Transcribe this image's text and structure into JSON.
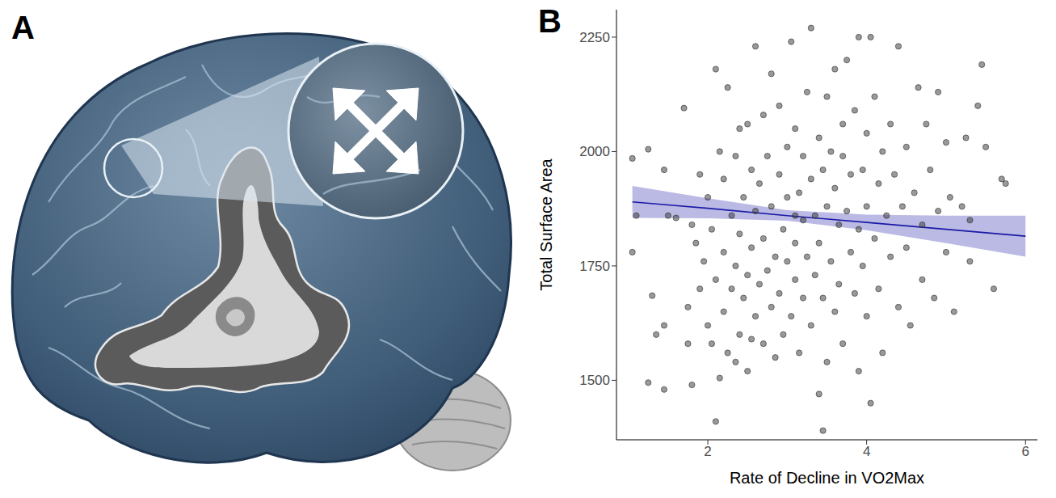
{
  "panel_labels": [
    "A",
    "B"
  ],
  "chart_data": {
    "type": "scatter",
    "x_label": "Rate of Decline in VO2Max",
    "y_label": "Total Surface Area",
    "xlim": [
      0.85,
      6.15
    ],
    "xticks": [
      2,
      4,
      6
    ],
    "ylim": [
      1370,
      2310
    ],
    "yticks": [
      1500,
      1750,
      2000,
      2250
    ],
    "series": [
      {
        "type": "scatter",
        "color": "#333333",
        "marker": "circle",
        "x": [
          1.05,
          1.05,
          1.1,
          1.25,
          1.3,
          1.25,
          1.35,
          1.45,
          1.45,
          1.45,
          1.5,
          1.6,
          1.7,
          1.75,
          1.75,
          1.8,
          1.8,
          1.85,
          1.9,
          1.9,
          1.95,
          2.0,
          2.0,
          2.05,
          2.1,
          2.1,
          2.1,
          2.15,
          2.15,
          2.2,
          2.2,
          2.2,
          2.25,
          2.25,
          2.3,
          2.3,
          2.35,
          2.35,
          2.4,
          2.4,
          2.4,
          2.45,
          2.45,
          2.5,
          2.5,
          2.5,
          2.55,
          2.55,
          2.6,
          2.6,
          2.6,
          2.65,
          2.65,
          2.7,
          2.7,
          2.7,
          2.75,
          2.75,
          2.8,
          2.8,
          2.8,
          2.85,
          2.85,
          2.9,
          2.9,
          2.9,
          2.95,
          2.95,
          3.0,
          3.0,
          3.0,
          3.05,
          3.05,
          3.1,
          3.1,
          3.1,
          3.15,
          3.15,
          3.2,
          3.2,
          3.2,
          3.25,
          3.25,
          3.3,
          3.3,
          3.3,
          3.35,
          3.35,
          3.4,
          3.4,
          3.4,
          3.45,
          3.45,
          3.5,
          3.5,
          3.5,
          3.55,
          3.55,
          3.6,
          3.6,
          3.6,
          3.65,
          3.65,
          3.7,
          3.7,
          3.7,
          3.75,
          3.75,
          3.8,
          3.8,
          3.85,
          3.85,
          3.9,
          3.9,
          3.9,
          3.95,
          3.95,
          4.0,
          4.0,
          4.0,
          4.05,
          4.05,
          4.1,
          4.1,
          4.15,
          4.15,
          4.2,
          4.2,
          4.25,
          4.3,
          4.3,
          4.35,
          4.4,
          4.4,
          4.45,
          4.5,
          4.5,
          4.55,
          4.6,
          4.65,
          4.7,
          4.7,
          4.75,
          4.8,
          4.85,
          4.9,
          4.9,
          5.0,
          5.0,
          5.05,
          5.1,
          5.2,
          5.25,
          5.3,
          5.3,
          5.4,
          5.45,
          5.5,
          5.6,
          5.7,
          5.75,
          3.45,
          2.55,
          3.1,
          2.35,
          2.05
        ],
        "values": [
          1985,
          1780,
          1860,
          1495,
          1685,
          2005,
          1600,
          1480,
          1620,
          1960,
          1860,
          1855,
          2095,
          1660,
          1580,
          1840,
          1490,
          1800,
          1700,
          1950,
          1760,
          1620,
          1900,
          1830,
          1410,
          2180,
          1720,
          1505,
          2000,
          1650,
          1780,
          1940,
          2140,
          1560,
          1860,
          1700,
          1990,
          1750,
          1600,
          2050,
          1820,
          1900,
          1680,
          1730,
          2060,
          1520,
          1960,
          1790,
          1640,
          1870,
          2230,
          1710,
          1930,
          1580,
          1810,
          2080,
          1740,
          1990,
          1660,
          1880,
          2170,
          1770,
          1550,
          1950,
          1690,
          2100,
          1830,
          1600,
          1760,
          2010,
          1900,
          1640,
          2240,
          1800,
          1720,
          2050,
          1910,
          1560,
          1850,
          1990,
          1680,
          2130,
          1770,
          1940,
          1620,
          2270,
          1860,
          1730,
          2030,
          1470,
          1800,
          1960,
          1680,
          2120,
          1880,
          1540,
          1760,
          2000,
          1920,
          1650,
          2180,
          1840,
          1710,
          2060,
          1990,
          1580,
          1870,
          2200,
          1780,
          1950,
          1690,
          2090,
          2250,
          1830,
          1520,
          1960,
          1750,
          2040,
          1880,
          1640,
          1450,
          2250,
          1810,
          2120,
          1930,
          1700,
          2000,
          1560,
          1860,
          2060,
          1770,
          1950,
          2230,
          1660,
          1880,
          2010,
          1790,
          1620,
          1910,
          2140,
          1840,
          1720,
          2060,
          1960,
          1680,
          1870,
          2130,
          1780,
          2020,
          1900,
          1650,
          1880,
          2030,
          1850,
          1760,
          2100,
          2190,
          2010,
          1700,
          1940,
          1930,
          1390,
          1590,
          1860,
          1540,
          1580
        ]
      },
      {
        "type": "line",
        "color": "#1a1aa6",
        "x": [
          1.05,
          2,
          3,
          4,
          5,
          6
        ],
        "values": [
          1890,
          1876,
          1860,
          1845,
          1830,
          1815
        ],
        "lower": [
          1855,
          1854,
          1849,
          1828,
          1800,
          1770
        ],
        "upper": [
          1925,
          1898,
          1872,
          1862,
          1860,
          1860
        ]
      }
    ]
  }
}
